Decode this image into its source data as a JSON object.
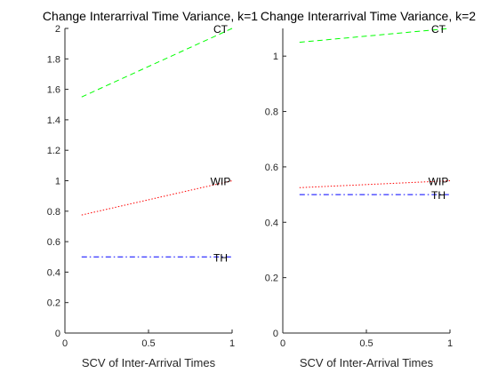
{
  "chart_data": [
    {
      "type": "line",
      "title": "Change Interarrival Time Variance, k=1",
      "xlabel": "SCV of Inter-Arrival Times",
      "ylabel": "",
      "xlim": [
        0,
        1
      ],
      "ylim": [
        0,
        2
      ],
      "xticks": [
        "0",
        "0.5",
        "1"
      ],
      "yticks": [
        "0",
        "0.2",
        "0.4",
        "0.6",
        "0.8",
        "1",
        "1.2",
        "1.4",
        "1.6",
        "1.8",
        "2"
      ],
      "grid": false,
      "series": [
        {
          "name": "CT",
          "style": "dashed",
          "color": "#00ff00",
          "x": [
            0.1,
            1.0
          ],
          "y": [
            1.55,
            2.0
          ]
        },
        {
          "name": "WIP",
          "style": "dotted",
          "color": "#ff0000",
          "x": [
            0.1,
            1.0
          ],
          "y": [
            0.775,
            1.0
          ]
        },
        {
          "name": "TH",
          "style": "dashdot",
          "color": "#0000ff",
          "x": [
            0.1,
            1.0
          ],
          "y": [
            0.5,
            0.5
          ]
        }
      ]
    },
    {
      "type": "line",
      "title": "Change Interarrival Time Variance, k=2",
      "xlabel": "SCV of Inter-Arrival Times",
      "ylabel": "",
      "xlim": [
        0,
        1
      ],
      "ylim": [
        0,
        1.1
      ],
      "xticks": [
        "0",
        "0.5",
        "1"
      ],
      "yticks": [
        "0",
        "0.2",
        "0.4",
        "0.6",
        "0.8",
        "1"
      ],
      "grid": false,
      "series": [
        {
          "name": "CT",
          "style": "dashed",
          "color": "#00ff00",
          "x": [
            0.1,
            1.0
          ],
          "y": [
            1.05,
            1.1
          ]
        },
        {
          "name": "WIP",
          "style": "dotted",
          "color": "#ff0000",
          "x": [
            0.1,
            1.0
          ],
          "y": [
            0.525,
            0.55
          ]
        },
        {
          "name": "TH",
          "style": "dashdot",
          "color": "#0000ff",
          "x": [
            0.1,
            1.0
          ],
          "y": [
            0.5,
            0.5
          ]
        }
      ]
    }
  ]
}
